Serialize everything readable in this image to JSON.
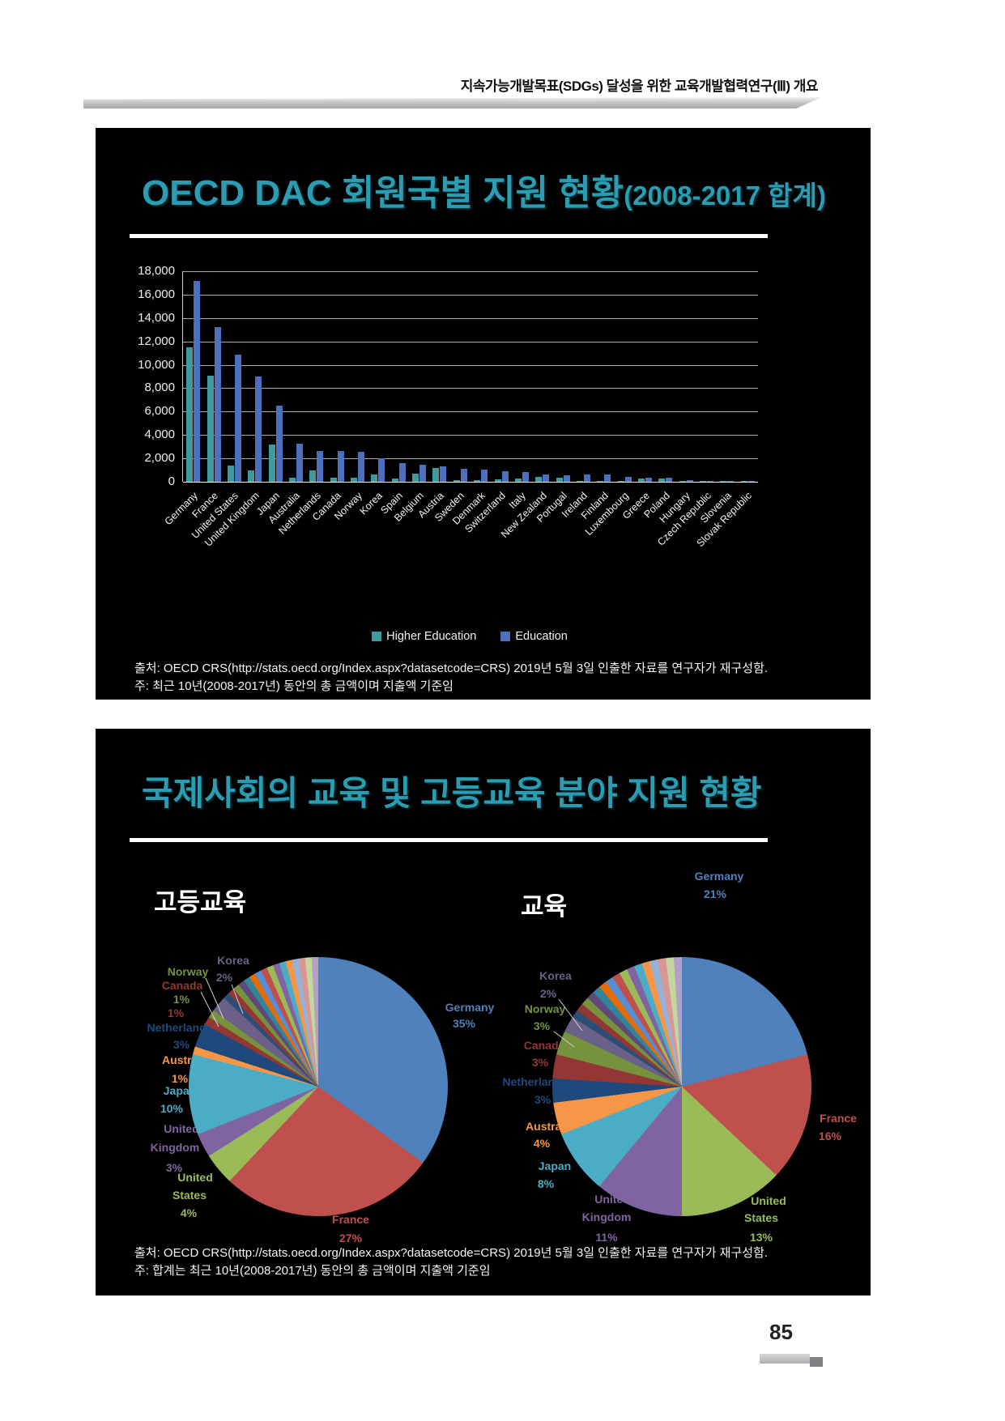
{
  "page": {
    "header": "지속가능개발목표(SDGs) 달성을 위한 교육개발협력연구(Ⅲ) 개요",
    "page_number": "85"
  },
  "slide1": {
    "title_main": "OECD DAC 회원국별 지원 현황",
    "title_sub": "(2008-2017 합계)",
    "source1": "출처: OECD CRS(http://stats.oecd.org/Index.aspx?datasetcode=CRS) 2019년 5월 3일 인출한 자료를 연구자가 재구성함.",
    "source2": "주: 최근 10년(2008-2017년) 동안의 총 금액이며 지출액 기준임"
  },
  "slide2": {
    "title": "국제사회의 교육 및 고등교육 분야 지원 현황",
    "pie1_heading": "고등교육",
    "pie2_heading": "교육",
    "source1": "출처: OECD CRS(http://stats.oecd.org/Index.aspx?datasetcode=CRS) 2019년 5월 3일 인출한 자료를 연구자가 재구성함.",
    "source2": "주: 합계는 최근 10년(2008-2017년) 동안의 총 금액이며 지출액 기준임"
  },
  "chart_data": [
    {
      "type": "bar",
      "title": "OECD DAC 회원국별 지원 현황(2008-2017 합계)",
      "xlabel": "",
      "ylabel": "",
      "ylim": [
        0,
        18000
      ],
      "ytick_step": 2000,
      "grid": true,
      "legend_position": "bottom",
      "categories": [
        "Germany",
        "France",
        "United States",
        "United Kingdom",
        "Japan",
        "Australia",
        "Netherlands",
        "Canada",
        "Norway",
        "Korea",
        "Spain",
        "Belgium",
        "Austria",
        "Sweden",
        "Denmark",
        "Switzerland",
        "Italy",
        "New Zealand",
        "Portugal",
        "Ireland",
        "Finland",
        "Luxembourg",
        "Greece",
        "Poland",
        "Hungary",
        "Czech Republic",
        "Slovenia",
        "Slovak Republic"
      ],
      "series": [
        {
          "name": "Higher Education",
          "color": "#3e9c9e",
          "values": [
            11500,
            9100,
            1400,
            950,
            3200,
            350,
            1000,
            370,
            370,
            620,
            280,
            700,
            1150,
            150,
            140,
            200,
            310,
            430,
            340,
            60,
            70,
            40,
            290,
            260,
            90,
            60,
            30,
            20
          ]
        },
        {
          "name": "Education",
          "color": "#4c70be",
          "values": [
            17200,
            13200,
            10900,
            9000,
            6500,
            3250,
            2650,
            2600,
            2550,
            1980,
            1570,
            1430,
            1330,
            1100,
            1060,
            870,
            800,
            650,
            560,
            620,
            600,
            420,
            360,
            320,
            120,
            90,
            50,
            30
          ]
        }
      ]
    },
    {
      "type": "pie",
      "title": "고등교육",
      "legend_position": "none",
      "slices": [
        {
          "label": "Germany",
          "pct": 35,
          "color": "#4f81bd"
        },
        {
          "label": "France",
          "pct": 27,
          "color": "#c0504d"
        },
        {
          "label": "United States",
          "pct": 4,
          "color": "#9bbb59"
        },
        {
          "label": "United Kingdom",
          "pct": 3,
          "color": "#8064a2"
        },
        {
          "label": "Japan",
          "pct": 10,
          "color": "#4bacc6"
        },
        {
          "label": "Australia",
          "pct": 1,
          "color": "#f79646"
        },
        {
          "label": "Netherlands",
          "pct": 3,
          "color": "#1f497d"
        },
        {
          "label": "Canada",
          "pct": 1,
          "color": "#943634"
        },
        {
          "label": "Norway",
          "pct": 1,
          "color": "#76923c"
        },
        {
          "label": "Korea",
          "pct": 2,
          "color": "#6b6087"
        }
      ],
      "others_pct": 13
    },
    {
      "type": "pie",
      "title": "교육",
      "legend_position": "none",
      "slices": [
        {
          "label": "Germany",
          "pct": 21,
          "color": "#4f81bd"
        },
        {
          "label": "France",
          "pct": 16,
          "color": "#c0504d"
        },
        {
          "label": "United States",
          "pct": 13,
          "color": "#9bbb59"
        },
        {
          "label": "United Kingdom",
          "pct": 11,
          "color": "#8064a2"
        },
        {
          "label": "Japan",
          "pct": 8,
          "color": "#4bacc6"
        },
        {
          "label": "Australia",
          "pct": 4,
          "color": "#f79646"
        },
        {
          "label": "Netherlands",
          "pct": 3,
          "color": "#1f497d"
        },
        {
          "label": "Canada",
          "pct": 3,
          "color": "#943634"
        },
        {
          "label": "Norway",
          "pct": 3,
          "color": "#76923c"
        },
        {
          "label": "Korea",
          "pct": 2,
          "color": "#6b6087"
        }
      ],
      "others_pct": 16
    }
  ]
}
